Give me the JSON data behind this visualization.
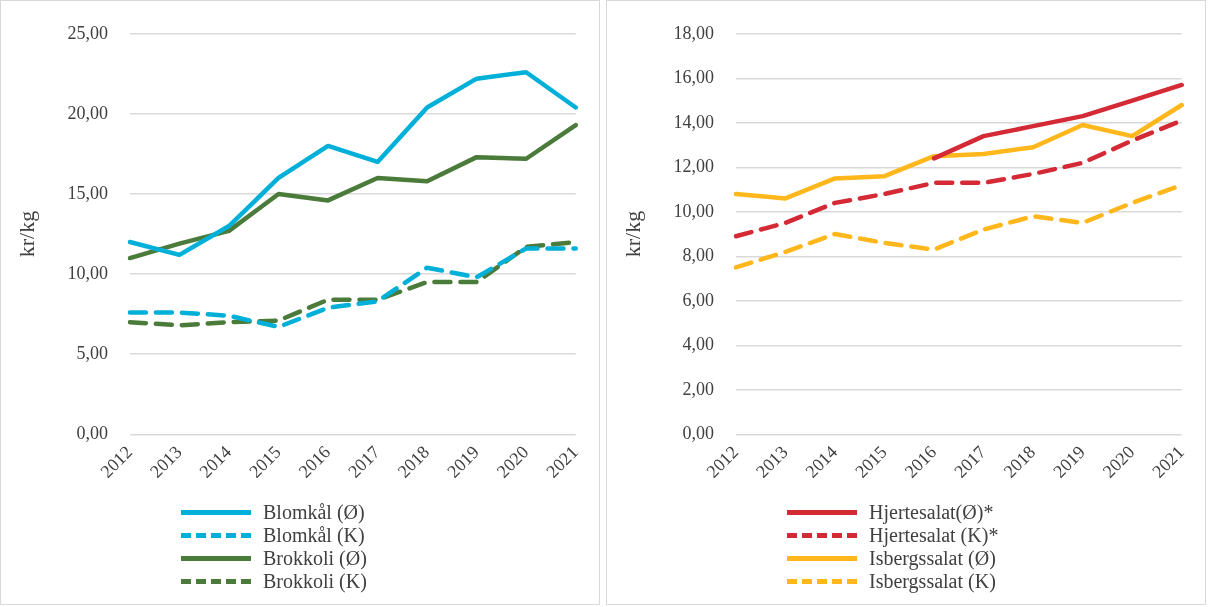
{
  "chart_data": [
    {
      "type": "line",
      "ylabel": "kr/kg",
      "categories": [
        "2012",
        "2013",
        "2014",
        "2015",
        "2016",
        "2017",
        "2018",
        "2019",
        "2020",
        "2021"
      ],
      "series": [
        {
          "name": "Blomkål (Ø)",
          "color": "#00b0d8",
          "line_style": "solid",
          "values": [
            12.0,
            11.2,
            13.0,
            16.0,
            18.0,
            17.0,
            20.4,
            22.2,
            22.6,
            20.4
          ]
        },
        {
          "name": "Blomkål (K)",
          "color": "#00b0d8",
          "line_style": "dashed",
          "values": [
            7.6,
            7.6,
            7.4,
            6.7,
            7.9,
            8.3,
            10.4,
            9.8,
            11.6,
            11.6
          ]
        },
        {
          "name": "Brokkoli (Ø)",
          "color": "#4a7b3a",
          "line_style": "solid",
          "values": [
            11.0,
            11.9,
            12.7,
            15.0,
            14.6,
            16.0,
            15.8,
            17.3,
            17.2,
            19.3
          ]
        },
        {
          "name": "Brokkoli (K)",
          "color": "#4a7b3a",
          "line_style": "dashed",
          "values": [
            7.0,
            6.8,
            7.0,
            7.1,
            8.4,
            8.4,
            9.5,
            9.5,
            11.7,
            12.0
          ]
        }
      ],
      "ylim": [
        0,
        25
      ],
      "yticks": [
        {
          "value": 0,
          "label": "0,00"
        },
        {
          "value": 5,
          "label": "5,00"
        },
        {
          "value": 10,
          "label": "10,00"
        },
        {
          "value": 15,
          "label": "15,00"
        },
        {
          "value": 20,
          "label": "20,00"
        },
        {
          "value": 25,
          "label": "25,00"
        }
      ],
      "grid": "y",
      "legend": "bottom",
      "marker": "none"
    },
    {
      "type": "line",
      "ylabel": "kr/kg",
      "categories": [
        "2012",
        "2013",
        "2014",
        "2015",
        "2016",
        "2017",
        "2018",
        "2019",
        "2020",
        "2021"
      ],
      "series": [
        {
          "name": "Hjertesalat(Ø)*",
          "color": "#d42a35",
          "line_style": "solid",
          "values": [
            null,
            null,
            null,
            null,
            12.4,
            13.4,
            13.85,
            14.3,
            15.0,
            15.7
          ]
        },
        {
          "name": "Hjertesalat (K)*",
          "color": "#d42a35",
          "line_style": "dashed",
          "values": [
            8.9,
            9.5,
            10.4,
            10.8,
            11.3,
            11.3,
            11.7,
            12.2,
            13.2,
            14.1
          ]
        },
        {
          "name": "Isbergssalat (Ø)",
          "color": "#ffb71b",
          "line_style": "solid",
          "values": [
            10.8,
            10.6,
            11.5,
            11.6,
            12.5,
            12.6,
            12.9,
            13.9,
            13.4,
            14.8
          ]
        },
        {
          "name": "Isbergssalat (K)",
          "color": "#ffb71b",
          "line_style": "dashed",
          "values": [
            7.5,
            8.2,
            9.0,
            8.6,
            8.3,
            9.2,
            9.8,
            9.5,
            10.4,
            11.2
          ]
        }
      ],
      "ylim": [
        0,
        18
      ],
      "yticks": [
        {
          "value": 0,
          "label": "0,00"
        },
        {
          "value": 2,
          "label": "2,00"
        },
        {
          "value": 4,
          "label": "4,00"
        },
        {
          "value": 6,
          "label": "6,00"
        },
        {
          "value": 8,
          "label": "8,00"
        },
        {
          "value": 10,
          "label": "10,00"
        },
        {
          "value": 12,
          "label": "12,00"
        },
        {
          "value": 14,
          "label": "14,00"
        },
        {
          "value": 16,
          "label": "16,00"
        },
        {
          "value": 18,
          "label": "18,00"
        }
      ],
      "grid": "y",
      "legend": "bottom",
      "marker": "none"
    }
  ]
}
